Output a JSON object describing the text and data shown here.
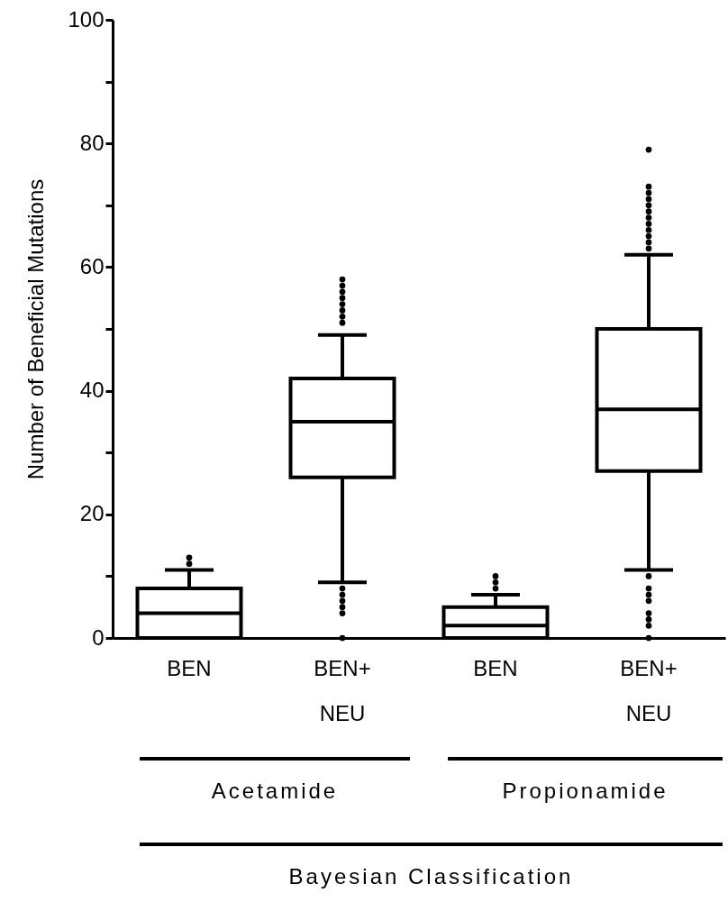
{
  "chart_data": {
    "type": "box",
    "ylabel": "Number of Beneficial Mutations",
    "categories": [
      "BEN",
      "BEN+ NEU",
      "BEN",
      "BEN+ NEU"
    ],
    "boxes": [
      {
        "low": 0,
        "q1": 0,
        "median": 4,
        "q3": 8,
        "high": 11,
        "outliers": [
          12,
          13
        ]
      },
      {
        "low": 9,
        "q1": 26,
        "median": 35,
        "q3": 42,
        "high": 49,
        "outliers": [
          0,
          4,
          5,
          6,
          7,
          8,
          51,
          52,
          53,
          54,
          55,
          56,
          57,
          58
        ]
      },
      {
        "low": 0,
        "q1": 0,
        "median": 2,
        "q3": 5,
        "high": 7,
        "outliers": [
          8,
          9,
          10
        ]
      },
      {
        "low": 11,
        "q1": 27,
        "median": 37,
        "q3": 50,
        "high": 62,
        "outliers": [
          0,
          2,
          3,
          4,
          6,
          7,
          8,
          10,
          63,
          64,
          65,
          66,
          67,
          68,
          69,
          70,
          71,
          72,
          73,
          79
        ]
      }
    ],
    "annotations": [
      "Acetamide",
      "Propionamide",
      "Bayesian Classification"
    ],
    "ylim": [
      0,
      100
    ],
    "yticks": [
      0,
      {
        "value": 10,
        "label": null
      },
      20,
      {
        "value": 30,
        "label": null
      },
      40,
      {
        "value": 50,
        "label": null
      },
      60,
      {
        "value": 70,
        "label": null
      },
      80,
      {
        "value": 90,
        "label": null
      },
      100
    ],
    "grid": false
  }
}
